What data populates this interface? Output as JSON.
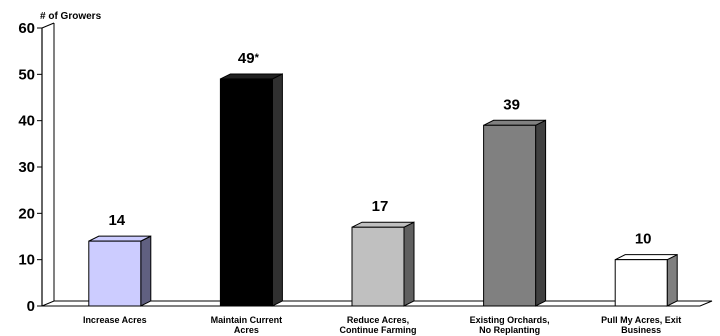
{
  "chart_data": {
    "type": "bar",
    "ylabel": "# of Growers",
    "ylim": [
      0,
      60
    ],
    "yticks": [
      0,
      10,
      20,
      30,
      40,
      50,
      60
    ],
    "grid": false,
    "bars": [
      {
        "label_lines": [
          "Increase Acres"
        ],
        "value": 14,
        "value_label": "14",
        "face": "#ccccff",
        "side": "#606080"
      },
      {
        "label_lines": [
          "Maintain Current",
          "Acres"
        ],
        "value": 49,
        "value_label": "49",
        "note": "*",
        "face": "#000000",
        "side": "#303030"
      },
      {
        "label_lines": [
          "Reduce Acres,",
          "Continue Farming"
        ],
        "value": 17,
        "value_label": "17",
        "face": "#c0c0c0",
        "side": "#606060"
      },
      {
        "label_lines": [
          "Existing Orchards,",
          "No Replanting"
        ],
        "value": 39,
        "value_label": "39",
        "face": "#808080",
        "side": "#404040"
      },
      {
        "label_lines": [
          "Pull My Acres, Exit",
          "Business"
        ],
        "value": 10,
        "value_label": "10",
        "face": "#ffffff",
        "side": "#808080"
      }
    ]
  }
}
